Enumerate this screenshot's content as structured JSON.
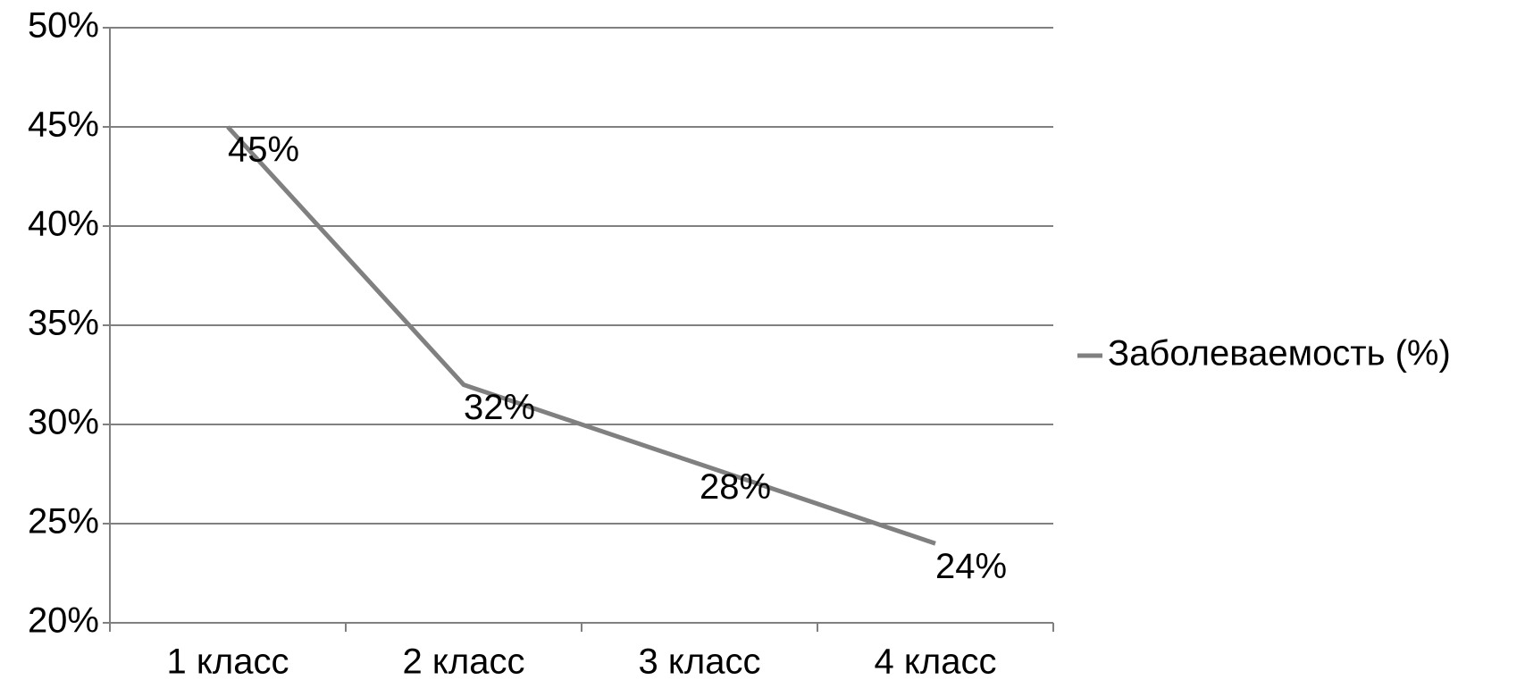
{
  "chart_data": {
    "type": "line",
    "categories": [
      "1 класс",
      "2 класс",
      "3 класс",
      "4 класс"
    ],
    "series": [
      {
        "name": "Заболеваемость (%)",
        "color": "#808080",
        "values": [
          45,
          32,
          28,
          24
        ],
        "value_labels": [
          "45%",
          "32%",
          "28%",
          "24%"
        ]
      }
    ],
    "ylim": [
      20,
      50
    ],
    "yticks": [
      {
        "value": 20,
        "label": "20%"
      },
      {
        "value": 25,
        "label": "25%"
      },
      {
        "value": 30,
        "label": "30%"
      },
      {
        "value": 35,
        "label": "35%"
      },
      {
        "value": 40,
        "label": "40%"
      },
      {
        "value": 45,
        "label": "45%"
      },
      {
        "value": 50,
        "label": "50%"
      }
    ],
    "grid": true,
    "legend": "right"
  }
}
